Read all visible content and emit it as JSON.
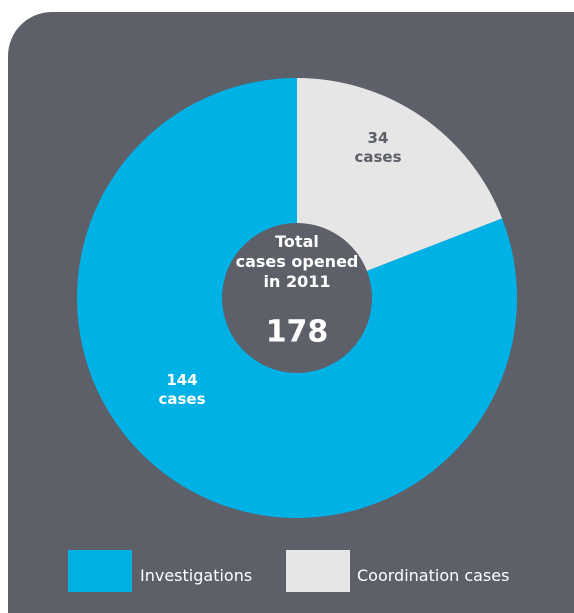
{
  "chart_data": {
    "type": "donut",
    "center_label": "Total\ncases opened\nin 2011",
    "total": 178,
    "series": [
      {
        "name": "Investigations",
        "color": "#00b1e6",
        "values": [
          144
        ],
        "value_labels": [
          "144\ncases"
        ]
      },
      {
        "name": "Coordination cases",
        "color": "#e6e6e7",
        "values": [
          34
        ],
        "value_labels": [
          "34\ncases"
        ]
      }
    ]
  }
}
